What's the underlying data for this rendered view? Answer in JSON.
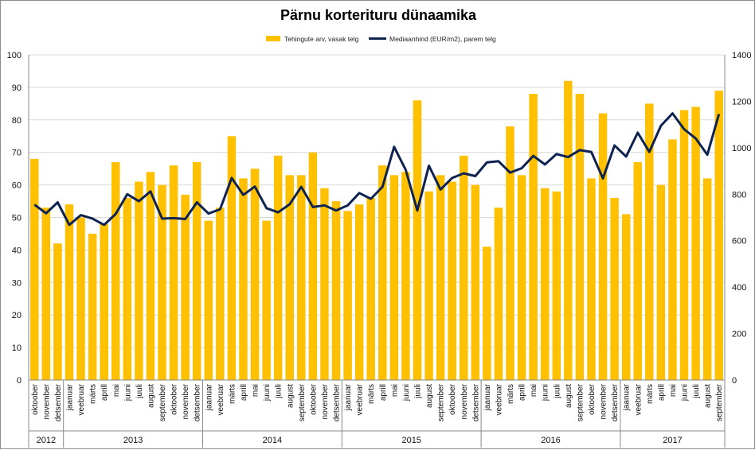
{
  "chart_data": {
    "type": "bar+line",
    "title": "Pärnu korterituru dünaamika",
    "colors": {
      "bars": "#FFC000",
      "line": "#0E2350",
      "grid": "#d9d9d9"
    },
    "legend": {
      "position": "top",
      "bars_label": "Tehingute arv, vasak telg",
      "line_label": "Mediaanhind (EUR/m2), parem telg"
    },
    "y_left": {
      "min": 0,
      "max": 100,
      "step": 10,
      "ticks": [
        "0",
        "10",
        "20",
        "30",
        "40",
        "50",
        "60",
        "70",
        "80",
        "90",
        "100"
      ]
    },
    "y_right": {
      "min": 0,
      "max": 1400,
      "step": 200,
      "ticks": [
        "0",
        "200",
        "400",
        "600",
        "800",
        "1000",
        "1200",
        "1400"
      ]
    },
    "grid": true,
    "months": [
      "oktoober",
      "november",
      "detsember",
      "jaanuar",
      "veebruar",
      "märts",
      "aprill",
      "mai",
      "juuni",
      "juuli",
      "august",
      "september",
      "oktoober",
      "november",
      "detsember",
      "jaanuar",
      "veebruar",
      "märts",
      "aprill",
      "mai",
      "juuni",
      "juuli",
      "august",
      "september",
      "oktoober",
      "november",
      "detsember",
      "jaanuar",
      "veebruar",
      "märts",
      "aprill",
      "mai",
      "juuni",
      "juuli",
      "august",
      "september",
      "oktoober",
      "november",
      "detsember",
      "jaanuar",
      "veebruar",
      "märts",
      "aprill",
      "mai",
      "juuni",
      "juuli",
      "august",
      "september",
      "oktoober",
      "november",
      "detsember",
      "jaanuar",
      "veebruar",
      "märts",
      "aprill",
      "mai",
      "juuni",
      "juuli",
      "august",
      "september"
    ],
    "years": [
      {
        "label": "2012",
        "count": 3
      },
      {
        "label": "2013",
        "count": 12
      },
      {
        "label": "2014",
        "count": 12
      },
      {
        "label": "2015",
        "count": 12
      },
      {
        "label": "2016",
        "count": 12
      },
      {
        "label": "2017",
        "count": 9
      }
    ],
    "series": [
      {
        "name": "Tehingute arv, vasak telg",
        "type": "bar",
        "axis": "left",
        "values": [
          68,
          53,
          42,
          54,
          50,
          45,
          48,
          67,
          56,
          61,
          64,
          60,
          66,
          57,
          67,
          49,
          53,
          75,
          62,
          65,
          49,
          69,
          63,
          63,
          70,
          59,
          55,
          52,
          54,
          56,
          66,
          63,
          64,
          86,
          58,
          63,
          61,
          69,
          60,
          41,
          53,
          78,
          63,
          88,
          59,
          58,
          92,
          88,
          62,
          82,
          56,
          51,
          67,
          85,
          60,
          74,
          83,
          84,
          62,
          89
        ]
      },
      {
        "name": "Mediaanhind (EUR/m2), parem telg",
        "type": "line",
        "axis": "right",
        "values": [
          755,
          718,
          765,
          668,
          710,
          695,
          668,
          715,
          800,
          770,
          812,
          695,
          697,
          693,
          765,
          717,
          735,
          870,
          797,
          833,
          740,
          722,
          757,
          832,
          745,
          752,
          730,
          752,
          805,
          780,
          832,
          1004,
          905,
          730,
          923,
          820,
          870,
          890,
          878,
          937,
          942,
          893,
          912,
          965,
          928,
          973,
          960,
          990,
          982,
          868,
          1010,
          962,
          1065,
          982,
          1095,
          1148,
          1080,
          1040,
          970,
          1145
        ]
      }
    ]
  }
}
